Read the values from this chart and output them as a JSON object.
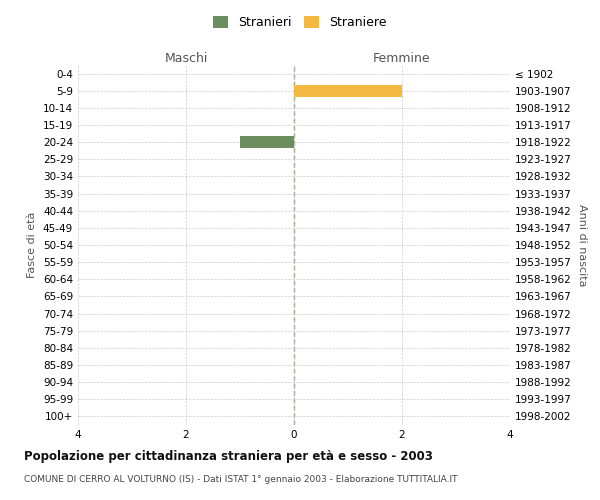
{
  "age_groups": [
    "0-4",
    "5-9",
    "10-14",
    "15-19",
    "20-24",
    "25-29",
    "30-34",
    "35-39",
    "40-44",
    "45-49",
    "50-54",
    "55-59",
    "60-64",
    "65-69",
    "70-74",
    "75-79",
    "80-84",
    "85-89",
    "90-94",
    "95-99",
    "100+"
  ],
  "birth_years": [
    "1998-2002",
    "1993-1997",
    "1988-1992",
    "1983-1987",
    "1978-1982",
    "1973-1977",
    "1968-1972",
    "1963-1967",
    "1958-1962",
    "1953-1957",
    "1948-1952",
    "1943-1947",
    "1938-1942",
    "1933-1937",
    "1928-1932",
    "1923-1927",
    "1918-1922",
    "1913-1917",
    "1908-1912",
    "1903-1907",
    "≤ 1902"
  ],
  "males": [
    0,
    0,
    0,
    0,
    1,
    0,
    0,
    0,
    0,
    0,
    0,
    0,
    0,
    0,
    0,
    0,
    0,
    0,
    0,
    0,
    0
  ],
  "females": [
    0,
    2,
    0,
    0,
    0,
    0,
    0,
    0,
    0,
    0,
    0,
    0,
    0,
    0,
    0,
    0,
    0,
    0,
    0,
    0,
    0
  ],
  "male_color": "#6b8e5e",
  "female_color": "#f5b942",
  "xlim": 4,
  "title": "Popolazione per cittadinanza straniera per età e sesso - 2003",
  "subtitle": "COMUNE DI CERRO AL VOLTURNO (IS) - Dati ISTAT 1° gennaio 2003 - Elaborazione TUTTITALIA.IT",
  "legend_male": "Stranieri",
  "legend_female": "Straniere",
  "xlabel_left": "Maschi",
  "xlabel_right": "Femmine",
  "ylabel_left": "Fasce di età",
  "ylabel_right": "Anni di nascita",
  "background_color": "#ffffff",
  "grid_color": "#cccccc"
}
